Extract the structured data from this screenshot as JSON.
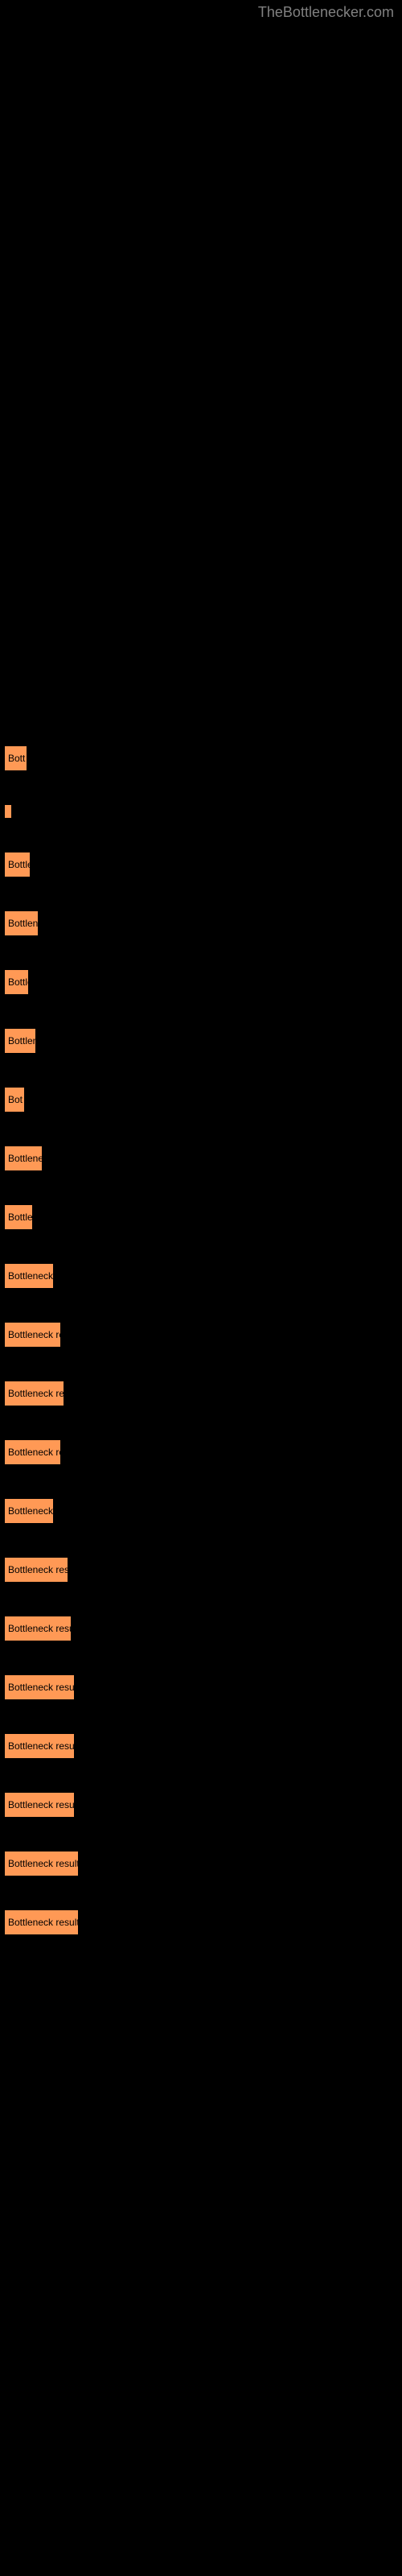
{
  "watermark": "TheBottlenecker.com",
  "chart": {
    "type": "bar",
    "background_color": "#000000",
    "bar_color": "#ff9955",
    "bar_border_color": "#000000",
    "text_color": "#000000",
    "font_size": 12,
    "bar_label": "Bottleneck result",
    "bars": [
      {
        "width": 29,
        "label": "Bott"
      },
      {
        "width": 6,
        "label": ""
      },
      {
        "width": 33,
        "label": "Bottle"
      },
      {
        "width": 43,
        "label": "Bottlenec"
      },
      {
        "width": 31,
        "label": "Bottle"
      },
      {
        "width": 40,
        "label": "Bottlene"
      },
      {
        "width": 26,
        "label": "Bot"
      },
      {
        "width": 48,
        "label": "Bottleneck"
      },
      {
        "width": 36,
        "label": "Bottlen"
      },
      {
        "width": 62,
        "label": "Bottleneck res"
      },
      {
        "width": 71,
        "label": "Bottleneck resu"
      },
      {
        "width": 75,
        "label": "Bottleneck result"
      },
      {
        "width": 71,
        "label": "Bottleneck resu"
      },
      {
        "width": 62,
        "label": "Bottleneck re"
      },
      {
        "width": 80,
        "label": "Bottleneck result"
      },
      {
        "width": 84,
        "label": "Bottleneck result"
      },
      {
        "width": 88,
        "label": "Bottleneck result"
      },
      {
        "width": 88,
        "label": "Bottleneck result"
      },
      {
        "width": 88,
        "label": "Bottleneck result"
      },
      {
        "width": 93,
        "label": "Bottleneck result"
      },
      {
        "width": 93,
        "label": "Bottleneck result"
      }
    ]
  }
}
